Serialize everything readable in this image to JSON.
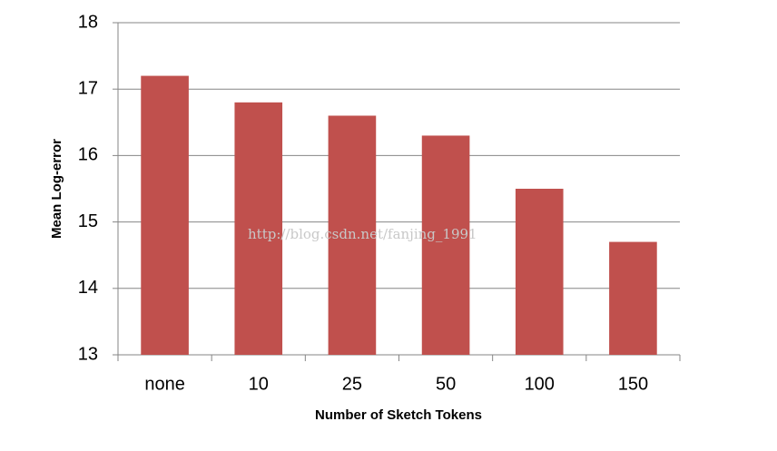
{
  "chart_data": {
    "type": "bar",
    "x_label": "Number of Sketch Tokens",
    "y_label": "Mean Log-error",
    "annotation": "http://blog.csdn.net/fanjing_1991",
    "categories": [
      "none",
      "10",
      "25",
      "50",
      "100",
      "150"
    ],
    "values": [
      17.2,
      16.8,
      16.6,
      16.3,
      15.5,
      14.7
    ],
    "color": "#c0504d",
    "ylim": [
      13,
      18
    ],
    "yticks": [
      13,
      14,
      15,
      16,
      17,
      18
    ],
    "grid": true
  }
}
